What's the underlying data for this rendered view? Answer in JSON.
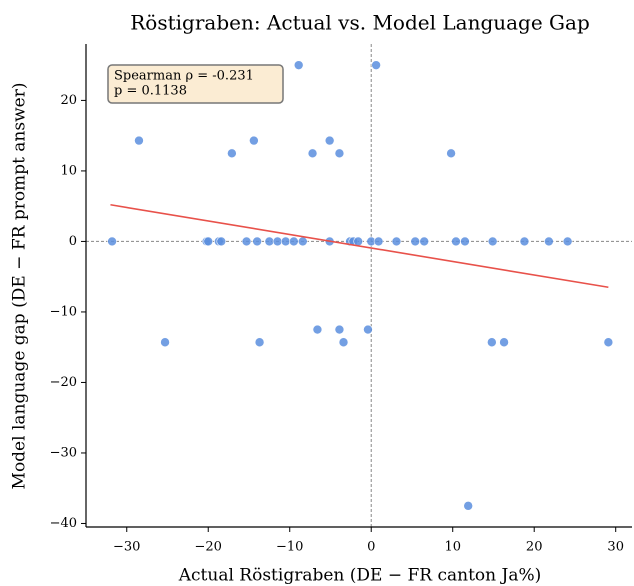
{
  "chart_data": {
    "type": "scatter",
    "title": "Röstigraben: Actual vs. Model Language Gap",
    "xlabel": "Actual Röstigraben (DE − FR canton Ja%)",
    "ylabel": "Model language gap (DE − FR prompt answer)",
    "annotation": [
      "Spearman ρ = -0.231",
      "p = 0.1138"
    ],
    "color": "#5b8ede",
    "x": [
      -31.8,
      -28.5,
      -25.3,
      -20.2,
      -20.0,
      -18.7,
      -18.4,
      -17.1,
      -15.3,
      -14.4,
      -14.0,
      -13.7,
      -12.5,
      -11.5,
      -10.5,
      -9.5,
      -8.9,
      -8.4,
      -7.2,
      -6.6,
      -5.1,
      -5.1,
      -3.9,
      -3.9,
      -3.4,
      -2.6,
      -2.2,
      -1.6,
      -0.4,
      0,
      0.6,
      0.9,
      3.1,
      5.4,
      6.5,
      9.8,
      10.4,
      11.5,
      11.9,
      14.9,
      14.8,
      16.3,
      18.8,
      21.8,
      24.1,
      29.1
    ],
    "values": [
      0,
      14.3,
      -14.3,
      0,
      0,
      0,
      0,
      12.5,
      0,
      14.3,
      0,
      -14.3,
      0,
      0,
      0,
      0,
      25,
      0,
      12.5,
      -12.5,
      14.3,
      0,
      12.5,
      -12.5,
      -14.3,
      0,
      0,
      0,
      -12.5,
      0,
      25,
      0,
      0,
      0,
      0,
      12.5,
      0,
      0,
      -37.5,
      0,
      -14.3,
      -14.3,
      0,
      0,
      0,
      -14.3
    ],
    "fit": {
      "x": [
        -32,
        29.1
      ],
      "y": [
        5.2,
        -6.5
      ],
      "color": "#e8514a"
    },
    "reference_lines": {
      "x": 0,
      "y": 0
    },
    "xlim": [
      -35,
      32
    ],
    "ylim": [
      -40.5,
      28
    ],
    "xticks": [
      {
        "value": -30,
        "label": "−30"
      },
      {
        "value": -20,
        "label": "−20"
      },
      {
        "value": -10,
        "label": "−10"
      },
      0,
      10,
      20,
      30
    ],
    "yticks": [
      {
        "value": -40,
        "label": "−40"
      },
      {
        "value": -30,
        "label": "−30"
      },
      {
        "value": -20,
        "label": "−20"
      },
      {
        "value": -10,
        "label": "−10"
      },
      0,
      10,
      20
    ]
  }
}
